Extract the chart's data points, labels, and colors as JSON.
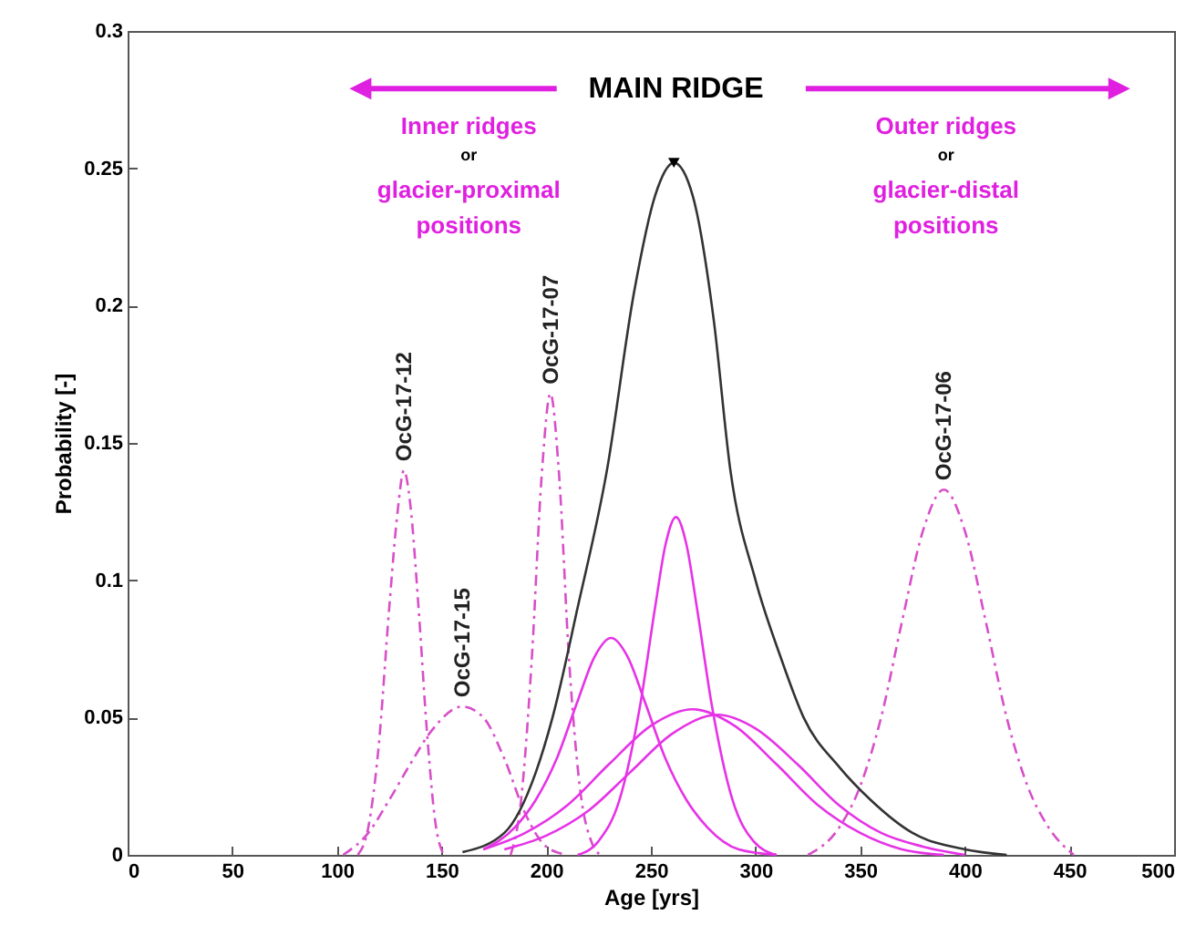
{
  "chart_data": {
    "type": "line",
    "xlabel": "Age [yrs]",
    "ylabel": "Probability [-]",
    "xlim": [
      0,
      500
    ],
    "xticks": [
      0,
      50,
      100,
      150,
      200,
      250,
      300,
      350,
      400,
      450,
      500
    ],
    "ylim": [
      0,
      0.3
    ],
    "yticks": [
      0,
      0.05,
      0.1,
      0.15,
      0.2,
      0.25,
      0.3
    ],
    "grid": false,
    "annotations": [
      "MAIN RIDGE",
      "Inner ridges",
      "or",
      "glacier-proximal",
      "positions",
      "Outer ridges",
      "or",
      "glacier-distal",
      "positions"
    ],
    "series": [
      {
        "name": "OcG-17-12",
        "line_style": "dashed",
        "color": "#d84fc8",
        "x": [
          110,
          115,
          120,
          125,
          129,
          132,
          135,
          139,
          143,
          147,
          151
        ],
        "values": [
          0,
          0.01,
          0.04,
          0.09,
          0.125,
          0.14,
          0.128,
          0.09,
          0.045,
          0.012,
          0
        ]
      },
      {
        "name": "OcG-17-15",
        "line_style": "dashed",
        "color": "#d84fc8",
        "x": [
          103,
          115,
          125,
          135,
          145,
          160,
          170,
          180,
          190,
          200,
          210
        ],
        "values": [
          0,
          0.008,
          0.02,
          0.033,
          0.045,
          0.054,
          0.05,
          0.035,
          0.015,
          0.003,
          0
        ]
      },
      {
        "name": "OcG-17-07",
        "line_style": "dashed",
        "color": "#d84fc8",
        "x": [
          183,
          188,
          193,
          198,
          202,
          206,
          211,
          216,
          222,
          226
        ],
        "values": [
          0,
          0.02,
          0.07,
          0.14,
          0.168,
          0.14,
          0.07,
          0.025,
          0.004,
          0
        ]
      },
      {
        "name": "OcG-17-06",
        "line_style": "dashed",
        "color": "#d84fc8",
        "x": [
          325,
          340,
          350,
          360,
          370,
          380,
          390,
          400,
          410,
          420,
          430,
          440,
          452
        ],
        "values": [
          0,
          0.01,
          0.025,
          0.05,
          0.085,
          0.118,
          0.133,
          0.118,
          0.085,
          0.05,
          0.025,
          0.01,
          0
        ]
      },
      {
        "type": "line",
        "line_style": "solid",
        "color": "#e633e6",
        "x": [
          170,
          185,
          195,
          205,
          215,
          223,
          231,
          239,
          247,
          257,
          267,
          277,
          292,
          310
        ],
        "values": [
          0.002,
          0.01,
          0.02,
          0.035,
          0.056,
          0.072,
          0.079,
          0.072,
          0.056,
          0.035,
          0.02,
          0.01,
          0.002,
          0
        ]
      },
      {
        "type": "line",
        "line_style": "solid",
        "color": "#e633e6",
        "x": [
          215,
          225,
          235,
          245,
          252,
          257,
          262,
          267,
          272,
          279,
          289,
          299,
          310
        ],
        "values": [
          0,
          0.005,
          0.02,
          0.055,
          0.09,
          0.113,
          0.123,
          0.113,
          0.09,
          0.055,
          0.02,
          0.005,
          0
        ]
      },
      {
        "type": "line",
        "line_style": "solid",
        "color": "#e633e6",
        "x": [
          170,
          190,
          210,
          230,
          250,
          270,
          290,
          310,
          330,
          350,
          370,
          390
        ],
        "values": [
          0.002,
          0.008,
          0.018,
          0.033,
          0.047,
          0.053,
          0.047,
          0.033,
          0.018,
          0.008,
          0.002,
          0
        ]
      },
      {
        "type": "line",
        "line_style": "solid",
        "color": "#e633e6",
        "x": [
          180,
          200,
          220,
          240,
          260,
          282,
          300,
          320,
          340,
          360,
          380,
          400
        ],
        "values": [
          0.002,
          0.007,
          0.016,
          0.03,
          0.044,
          0.051,
          0.046,
          0.033,
          0.018,
          0.008,
          0.003,
          0
        ]
      },
      {
        "type": "line",
        "line_style": "solid",
        "color": "#333333",
        "x": [
          160,
          180,
          195,
          203,
          215,
          229,
          242,
          252,
          261,
          270,
          280,
          288,
          300,
          312,
          323,
          340,
          355,
          375,
          400,
          420
        ],
        "values": [
          0.001,
          0.008,
          0.03,
          0.05,
          0.09,
          0.14,
          0.205,
          0.24,
          0.252,
          0.24,
          0.195,
          0.14,
          0.1,
          0.072,
          0.05,
          0.032,
          0.02,
          0.008,
          0.002,
          0
        ]
      },
      {
        "type": "scatter",
        "marker": "triangle",
        "color": "#000000",
        "x": [
          261
        ],
        "values": [
          0.252
        ]
      }
    ]
  }
}
